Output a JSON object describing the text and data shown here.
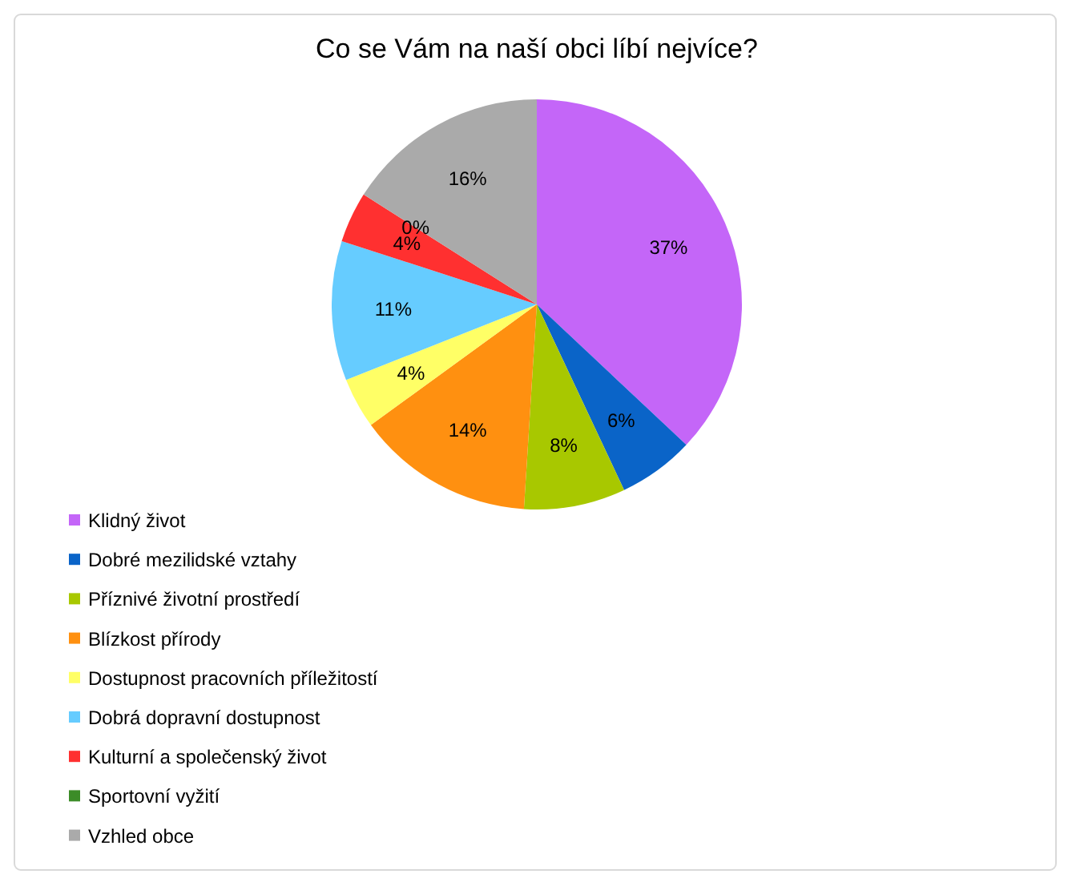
{
  "chart_data": {
    "type": "pie",
    "title": "Co se Vám na naší obci líbí nejvíce?",
    "categories": [
      "Klidný život",
      "Dobré mezilidské vztahy",
      "Příznivé životní prostředí",
      "Blízkost přírody",
      "Dostupnost pracovních příležitostí",
      "Dobrá dopravní dostupnost",
      "Kulturní a společenský život",
      "Sportovní vyžití",
      "Vzhled obce"
    ],
    "values": [
      37,
      6,
      8,
      14,
      4,
      11,
      4,
      0,
      16
    ],
    "value_labels": [
      "37%",
      "6%",
      "8%",
      "14%",
      "4%",
      "11%",
      "4%",
      "0%",
      "16%"
    ],
    "colors": [
      "#c466f8",
      "#0a64c8",
      "#a8c800",
      "#ff9010",
      "#ffff66",
      "#66ccff",
      "#ff3030",
      "#3c8c28",
      "#aaaaaa"
    ],
    "legend": "bottom left"
  }
}
